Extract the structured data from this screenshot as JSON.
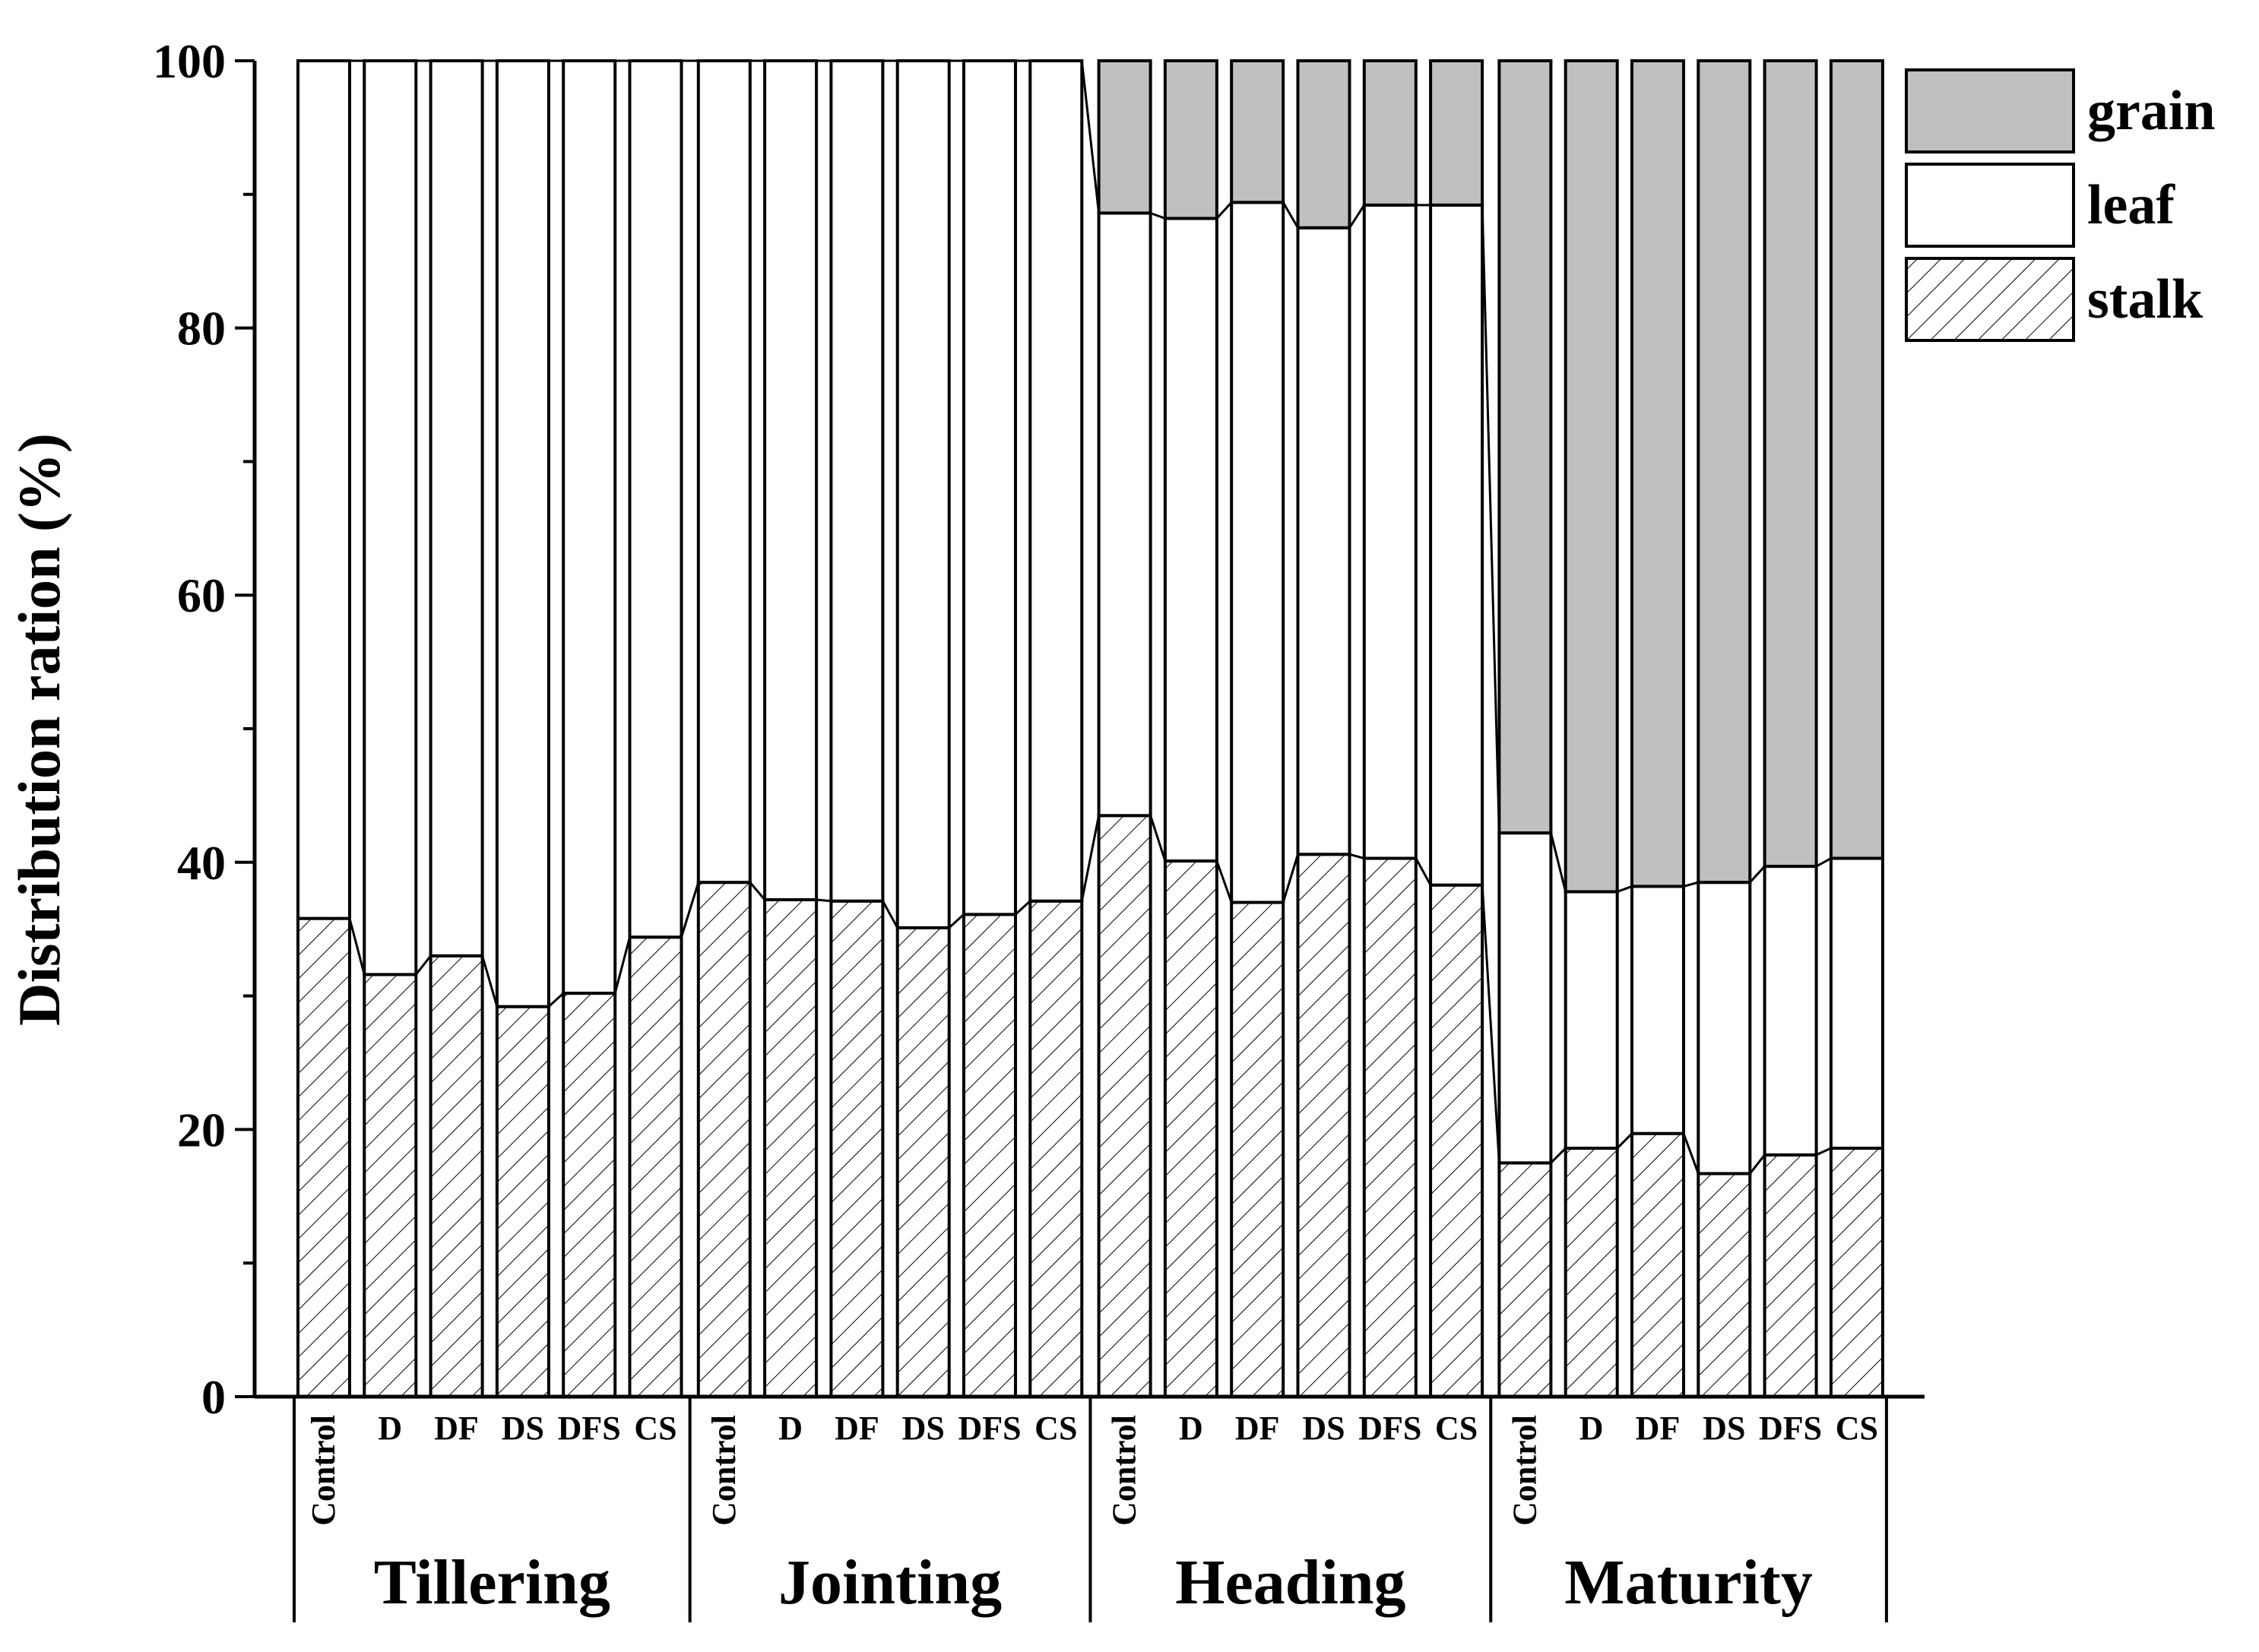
{
  "chart_data": {
    "type": "bar",
    "stacked": true,
    "title": "",
    "xlabel": "",
    "ylabel": "Distribution ration (%)",
    "ylim": [
      0,
      100
    ],
    "yticks": [
      0,
      20,
      40,
      60,
      80,
      100
    ],
    "groups": [
      {
        "name": "Tillering",
        "categories": [
          "Control",
          "D",
          "DF",
          "DS",
          "DFS",
          "CS"
        ]
      },
      {
        "name": "Jointing",
        "categories": [
          "Control",
          "D",
          "DF",
          "DS",
          "DFS",
          "CS"
        ]
      },
      {
        "name": "Heading",
        "categories": [
          "Control",
          "D",
          "DF",
          "DS",
          "DFS",
          "CS"
        ]
      },
      {
        "name": "Maturity",
        "categories": [
          "Control",
          "D",
          "DF",
          "DS",
          "DFS",
          "CS"
        ]
      }
    ],
    "series": [
      {
        "name": "stalk",
        "pattern": "hatched",
        "values": [
          35.8,
          31.6,
          33.0,
          29.2,
          30.2,
          34.4,
          38.5,
          37.2,
          37.1,
          35.1,
          36.1,
          37.1,
          43.5,
          40.1,
          37.0,
          40.6,
          40.3,
          38.3,
          17.5,
          18.6,
          19.7,
          16.7,
          18.1,
          18.6
        ]
      },
      {
        "name": "leaf",
        "pattern": "white",
        "values": [
          64.2,
          68.4,
          67.0,
          70.8,
          69.8,
          65.6,
          61.5,
          62.8,
          62.9,
          64.9,
          63.9,
          62.9,
          45.1,
          48.1,
          52.4,
          46.9,
          48.9,
          50.9,
          24.7,
          19.2,
          18.5,
          21.8,
          21.6,
          21.7
        ]
      },
      {
        "name": "grain",
        "pattern": "gray",
        "values": [
          0,
          0,
          0,
          0,
          0,
          0,
          0,
          0,
          0,
          0,
          0,
          0,
          11.4,
          11.8,
          10.6,
          12.5,
          10.8,
          10.8,
          57.8,
          62.2,
          61.8,
          61.5,
          60.3,
          59.7
        ]
      }
    ],
    "legend": {
      "placement": "top-right",
      "order": [
        "grain",
        "leaf",
        "stalk"
      ]
    },
    "colors": {
      "grain": "#c0c0c0",
      "leaf": "#ffffff",
      "stalk": "#ffffff",
      "stroke": "#000000"
    }
  }
}
